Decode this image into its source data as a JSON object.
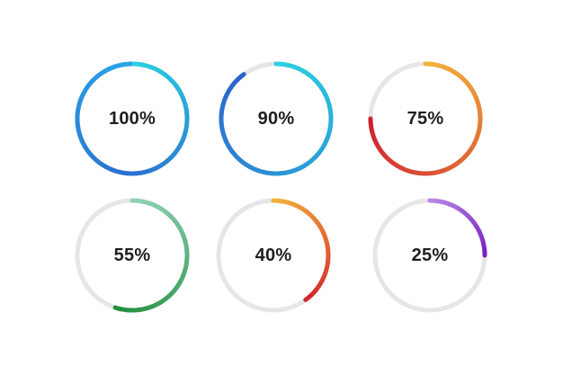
{
  "rings": [
    {
      "label": "100%",
      "value": 100,
      "color_start": "#2aa7e8",
      "color_end": "#29d3e0",
      "color_tail": "#2b6fcf"
    },
    {
      "label": "90%",
      "value": 90,
      "color_start": "#2ad0e1",
      "color_end": "#2b62cc",
      "color_tail": "#2b62cc"
    },
    {
      "label": "75%",
      "value": 75,
      "color_start": "#f2b33a",
      "color_end": "#d01f30",
      "color_tail": "#d01f30"
    },
    {
      "label": "55%",
      "value": 55,
      "color_start": "#93d2b8",
      "color_end": "#1f8f3c",
      "color_tail": "#1f8f3c"
    },
    {
      "label": "40%",
      "value": 40,
      "color_start": "#f2b33a",
      "color_end": "#d3242e",
      "color_tail": "#d3242e"
    },
    {
      "label": "25%",
      "value": 25,
      "color_start": "#b98be5",
      "color_end": "#7a1fbf",
      "color_tail": "#7a1fbf"
    }
  ],
  "colors": {
    "track": "#e6e6e6",
    "text": "#1f1f1f",
    "background": "#ffffff"
  }
}
